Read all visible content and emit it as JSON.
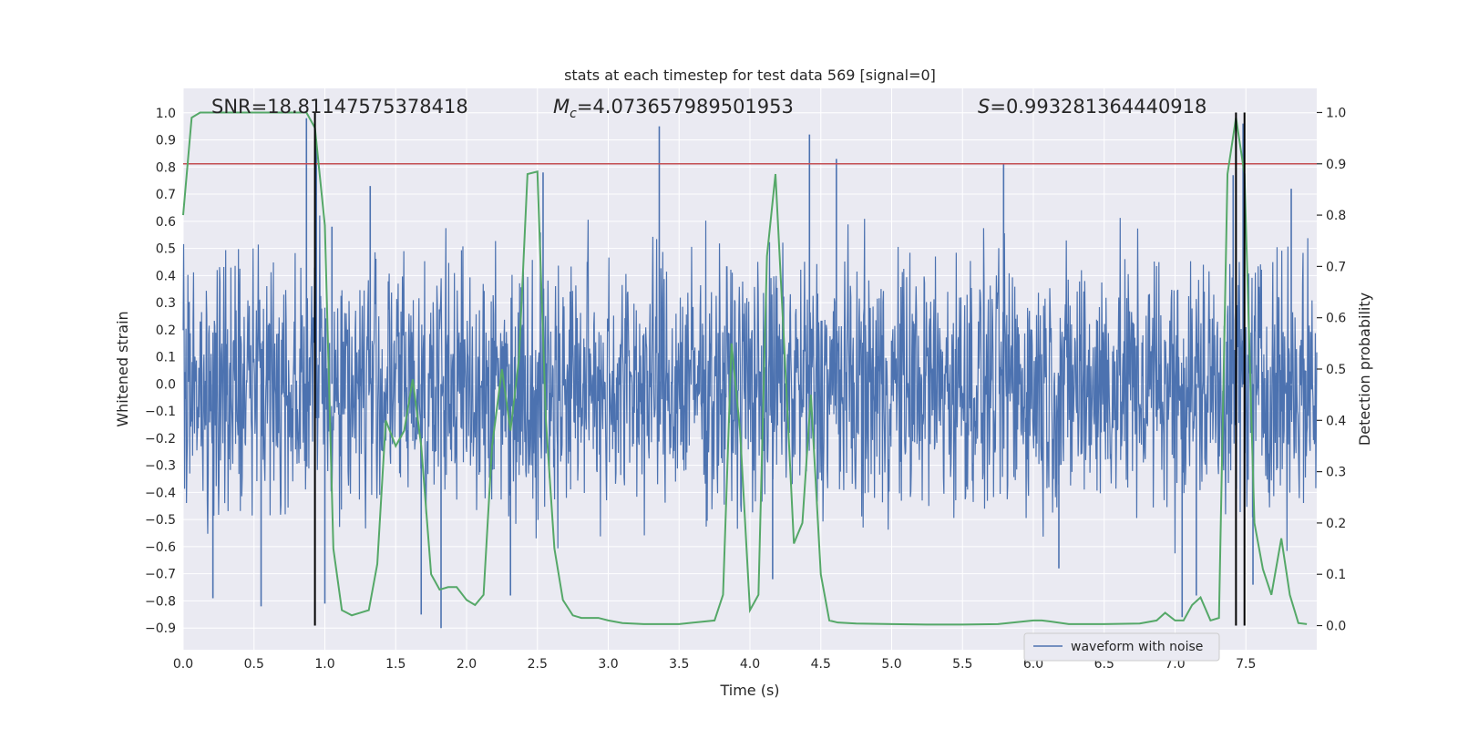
{
  "chart_data": {
    "type": "line",
    "title": "stats at each timestep for test data 569 [signal=0]",
    "xlabel": "Time (s)",
    "ylabel": "Whitened strain",
    "y2label": "Detection probability",
    "xlim": [
      0.0,
      8.0
    ],
    "ylim": [
      -0.98,
      1.09
    ],
    "y2lim": [
      -0.047,
      1.047
    ],
    "xticks": [
      "0.0",
      "0.5",
      "1.0",
      "1.5",
      "2.0",
      "2.5",
      "3.0",
      "3.5",
      "4.0",
      "4.5",
      "5.0",
      "5.5",
      "6.0",
      "6.5",
      "7.0",
      "7.5"
    ],
    "xtick_values": [
      0,
      0.5,
      1,
      1.5,
      2,
      2.5,
      3,
      3.5,
      4,
      4.5,
      5,
      5.5,
      6,
      6.5,
      7,
      7.5
    ],
    "yticks": [
      "1.0",
      "0.9",
      "0.8",
      "0.7",
      "0.6",
      "0.5",
      "0.4",
      "0.3",
      "0.2",
      "0.1",
      "0.0",
      "−0.1",
      "−0.2",
      "−0.3",
      "−0.4",
      "−0.5",
      "−0.6",
      "−0.7",
      "−0.8",
      "−0.9"
    ],
    "ytick_values": [
      1.0,
      0.9,
      0.8,
      0.7,
      0.6,
      0.5,
      0.4,
      0.3,
      0.2,
      0.1,
      0.0,
      -0.1,
      -0.2,
      -0.3,
      -0.4,
      -0.5,
      -0.6,
      -0.7,
      -0.8,
      -0.9
    ],
    "y2ticks": [
      "1.0",
      "0.9",
      "0.8",
      "0.7",
      "0.6",
      "0.5",
      "0.4",
      "0.3",
      "0.2",
      "0.1",
      "0.0"
    ],
    "y2tick_values": [
      1.0,
      0.9,
      0.8,
      0.7,
      0.6,
      0.5,
      0.4,
      0.3,
      0.2,
      0.1,
      0.0
    ],
    "grid": true,
    "legend_position": "bottom-right",
    "annotations": {
      "snr": "SNR=18.81147575378418",
      "mc_symbol": "M",
      "mc_subscript": "c",
      "mc_value": "=4.073657989501953",
      "s_symbol": "S",
      "s_value": "=0.993281364440918"
    },
    "threshold_y2": 0.9,
    "vlines_x": [
      0.93,
      7.43,
      7.49
    ],
    "series": [
      {
        "name": "waveform with noise",
        "color": "#4c72b0",
        "kind": "noisy-strain",
        "typical_envelope": 0.42,
        "spikes": [
          {
            "x": 0.87,
            "y": 0.98
          },
          {
            "x": 0.94,
            "y": 0.88
          },
          {
            "x": 1.05,
            "y": 0.58
          },
          {
            "x": 1.32,
            "y": 0.73
          },
          {
            "x": 2.54,
            "y": 0.78
          },
          {
            "x": 3.36,
            "y": 0.95
          },
          {
            "x": 4.42,
            "y": 0.92
          },
          {
            "x": 4.61,
            "y": 0.83
          },
          {
            "x": 5.79,
            "y": 0.81
          },
          {
            "x": 7.41,
            "y": 0.77
          },
          {
            "x": 7.48,
            "y": 0.96
          },
          {
            "x": 7.82,
            "y": 0.72
          },
          {
            "x": 0.21,
            "y": -0.79
          },
          {
            "x": 0.55,
            "y": -0.82
          },
          {
            "x": 1.0,
            "y": -0.81
          },
          {
            "x": 1.68,
            "y": -0.85
          },
          {
            "x": 1.82,
            "y": -0.9
          },
          {
            "x": 2.31,
            "y": -0.78
          },
          {
            "x": 4.16,
            "y": -0.72
          },
          {
            "x": 6.18,
            "y": -0.68
          },
          {
            "x": 7.05,
            "y": -0.86
          },
          {
            "x": 7.15,
            "y": -0.78
          },
          {
            "x": 7.55,
            "y": -0.74
          }
        ]
      },
      {
        "name": "",
        "color": "#55a868",
        "axis": "right",
        "kind": "detection-probability",
        "x": [
          0.0,
          0.06,
          0.12,
          0.25,
          0.5,
          0.75,
          0.87,
          0.93,
          1.0,
          1.06,
          1.12,
          1.19,
          1.25,
          1.31,
          1.37,
          1.43,
          1.5,
          1.56,
          1.62,
          1.68,
          1.75,
          1.81,
          1.87,
          1.93,
          2.0,
          2.06,
          2.12,
          2.18,
          2.25,
          2.31,
          2.37,
          2.43,
          2.5,
          2.56,
          2.62,
          2.68,
          2.75,
          2.81,
          2.87,
          2.93,
          3.0,
          3.1,
          3.25,
          3.5,
          3.75,
          3.81,
          3.87,
          3.93,
          4.0,
          4.06,
          4.12,
          4.18,
          4.25,
          4.31,
          4.37,
          4.43,
          4.5,
          4.56,
          4.62,
          4.75,
          5.0,
          5.25,
          5.5,
          5.75,
          6.0,
          6.06,
          6.12,
          6.25,
          6.5,
          6.75,
          6.87,
          6.93,
          7.0,
          7.06,
          7.12,
          7.18,
          7.25,
          7.31,
          7.37,
          7.43,
          7.49,
          7.56,
          7.62,
          7.68,
          7.75,
          7.81,
          7.87,
          7.93
        ],
        "y": [
          0.8,
          0.99,
          1.0,
          1.0,
          1.0,
          1.0,
          1.0,
          0.97,
          0.78,
          0.15,
          0.03,
          0.02,
          0.025,
          0.03,
          0.12,
          0.4,
          0.35,
          0.38,
          0.48,
          0.35,
          0.1,
          0.07,
          0.075,
          0.075,
          0.05,
          0.04,
          0.06,
          0.35,
          0.5,
          0.38,
          0.52,
          0.88,
          0.885,
          0.4,
          0.15,
          0.05,
          0.02,
          0.015,
          0.015,
          0.015,
          0.01,
          0.005,
          0.003,
          0.003,
          0.01,
          0.06,
          0.55,
          0.38,
          0.03,
          0.06,
          0.72,
          0.88,
          0.5,
          0.16,
          0.2,
          0.45,
          0.1,
          0.01,
          0.006,
          0.004,
          0.003,
          0.002,
          0.002,
          0.003,
          0.01,
          0.01,
          0.008,
          0.003,
          0.003,
          0.004,
          0.01,
          0.025,
          0.01,
          0.01,
          0.04,
          0.055,
          0.01,
          0.015,
          0.88,
          0.99,
          0.88,
          0.2,
          0.11,
          0.06,
          0.17,
          0.06,
          0.005,
          0.003
        ]
      }
    ]
  }
}
